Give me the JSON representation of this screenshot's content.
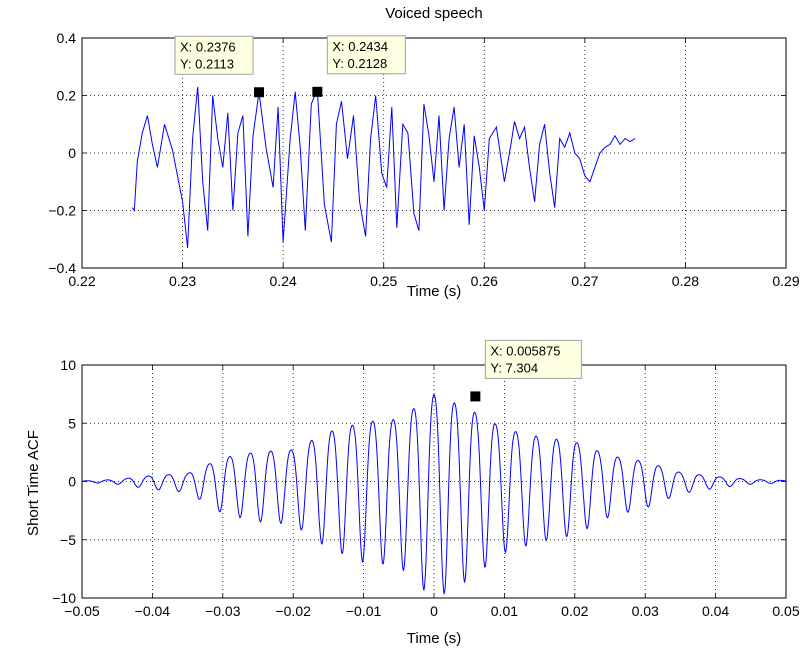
{
  "chart_data": [
    {
      "type": "line",
      "title": "Voiced speech",
      "xlabel": "Time (s)",
      "ylabel": "",
      "xlim": [
        0.22,
        0.29
      ],
      "ylim": [
        -0.4,
        0.4
      ],
      "x_ticks": [
        "0.22",
        "0.23",
        "0.24",
        "0.25",
        "0.26",
        "0.27",
        "0.28",
        "0.29"
      ],
      "y_ticks": [
        "0.4",
        "0.2",
        "0",
        "−0.2",
        "−0.4"
      ],
      "grid": true,
      "line_color": "#0000ff",
      "series": [
        {
          "x": [
            0.225,
            0.2252,
            0.2255,
            0.226,
            0.2265,
            0.227,
            0.2275,
            0.2282,
            0.229,
            0.23,
            0.2305,
            0.231,
            0.2315,
            0.232,
            0.2325,
            0.233,
            0.2335,
            0.234,
            0.2345,
            0.235,
            0.2355,
            0.236,
            0.2365,
            0.237,
            0.2376,
            0.2383,
            0.239,
            0.2395,
            0.24,
            0.2407,
            0.2412,
            0.2417,
            0.2422,
            0.2428,
            0.2434,
            0.2441,
            0.2448,
            0.2453,
            0.2458,
            0.2464,
            0.247,
            0.2476,
            0.2482,
            0.2487,
            0.2492,
            0.2498,
            0.2503,
            0.2508,
            0.2513,
            0.2519,
            0.2524,
            0.253,
            0.2535,
            0.254,
            0.2545,
            0.255,
            0.2555,
            0.256,
            0.2565,
            0.257,
            0.2575,
            0.258,
            0.2585,
            0.259,
            0.2595,
            0.26,
            0.2605,
            0.2612,
            0.262,
            0.2627,
            0.263,
            0.2635,
            0.264,
            0.2645,
            0.265,
            0.2655,
            0.266,
            0.2665,
            0.267,
            0.2675,
            0.268,
            0.2685,
            0.269,
            0.2695,
            0.27,
            0.2705,
            0.271,
            0.2715,
            0.272,
            0.2725,
            0.273,
            0.2735,
            0.274,
            0.2745,
            0.275
          ],
          "y": [
            -0.19,
            -0.2,
            -0.03,
            0.07,
            0.13,
            0.03,
            -0.05,
            0.1,
            0.01,
            -0.17,
            -0.33,
            0.05,
            0.23,
            -0.1,
            -0.27,
            0.2,
            0.05,
            -0.05,
            0.14,
            -0.2,
            0.07,
            0.13,
            -0.29,
            0.06,
            0.2113,
            0.02,
            -0.12,
            0.16,
            -0.31,
            0.05,
            0.2128,
            0.02,
            -0.27,
            0.17,
            0.22,
            -0.18,
            -0.31,
            0.1,
            0.18,
            -0.02,
            0.13,
            -0.17,
            -0.29,
            0.05,
            0.2,
            -0.07,
            -0.12,
            0.16,
            -0.26,
            0.1,
            0.07,
            -0.21,
            -0.27,
            0.17,
            0.06,
            -0.1,
            0.13,
            -0.2,
            0.05,
            0.16,
            -0.05,
            0.1,
            -0.25,
            0.06,
            -0.05,
            -0.2,
            0.05,
            0.09,
            -0.1,
            0.04,
            0.11,
            0.05,
            0.09,
            -0.05,
            -0.17,
            0.03,
            0.1,
            -0.07,
            -0.19,
            0.05,
            0.02,
            0.07,
            0.0,
            -0.02,
            -0.08,
            -0.1,
            -0.05,
            0.0,
            0.02,
            0.03,
            0.06,
            0.03,
            0.05,
            0.04,
            0.05
          ]
        }
      ],
      "datatips": [
        {
          "x": 0.2376,
          "y": 0.2113,
          "label_x": "X: 0.2376",
          "label_y": "Y: 0.2113"
        },
        {
          "x": 0.2434,
          "y": 0.2128,
          "label_x": "X: 0.2434",
          "label_y": "Y: 0.2128"
        }
      ]
    },
    {
      "type": "line",
      "title": "",
      "xlabel": "Time (s)",
      "ylabel": "Short Time ACF",
      "xlim": [
        -0.05,
        0.05
      ],
      "ylim": [
        -10,
        10
      ],
      "x_ticks": [
        "−0.05",
        "−0.04",
        "−0.03",
        "−0.02",
        "−0.01",
        "0",
        "0.01",
        "0.02",
        "0.03",
        "0.04",
        "0.05"
      ],
      "y_ticks": [
        "10",
        "5",
        "0",
        "−5",
        "−10"
      ],
      "grid": true,
      "line_color": "#0000ff",
      "envelope": {
        "x": [
          -0.05,
          -0.045,
          -0.04,
          -0.035,
          -0.03,
          -0.025,
          -0.02,
          -0.015,
          -0.01,
          -0.005,
          0,
          0.005,
          0.01,
          0.015,
          0.02,
          0.025,
          0.03,
          0.035,
          0.04,
          0.045,
          0.05
        ],
        "amp": [
          0.05,
          0.2,
          0.6,
          0.8,
          2.4,
          3.0,
          3.2,
          5.0,
          6.0,
          6.3,
          8.8,
          7.3,
          5.3,
          4.5,
          4.0,
          2.6,
          2.0,
          0.9,
          0.5,
          0.2,
          0.1
        ]
      },
      "period": 0.0029,
      "datatips": [
        {
          "x": 0.005875,
          "y": 7.304,
          "label_x": "X: 0.005875",
          "label_y": "Y: 7.304"
        }
      ]
    }
  ]
}
